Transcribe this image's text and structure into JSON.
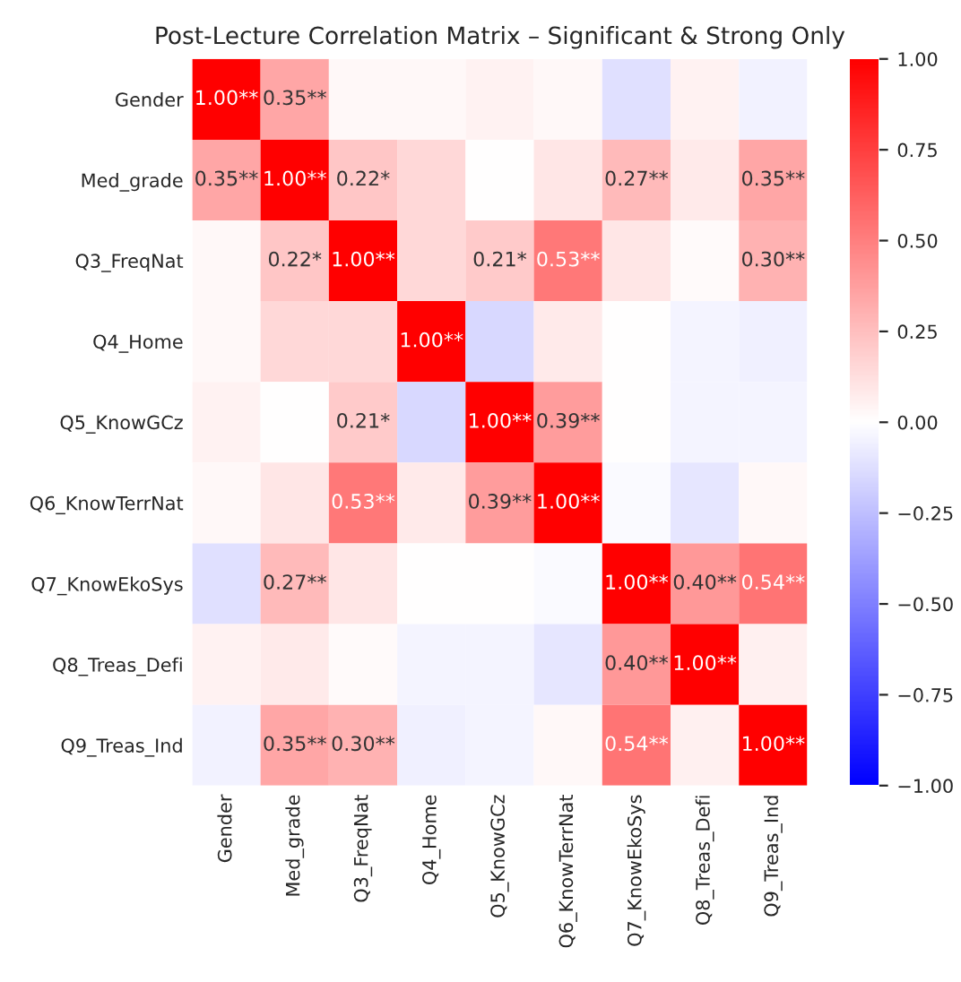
{
  "chart_data": {
    "type": "heatmap",
    "title": "Post-Lecture Correlation Matrix – Significant & Strong Only",
    "categories": [
      "Gender",
      "Med_grade",
      "Q3_FreqNat",
      "Q4_Home",
      "Q5_KnowGCz",
      "Q6_KnowTerrNat",
      "Q7_KnowEkoSys",
      "Q8_Treas_Defi",
      "Q9_Treas_Ind"
    ],
    "y_categories": [
      "Gender",
      "Med_grade",
      "Q3_FreqNat",
      "Q4_Home",
      "Q5_KnowGCz",
      "Q6_KnowTerrNat",
      "Q7_KnowEkoSys",
      "Q8_Treas_Defi",
      "Q9_Treas_Ind"
    ],
    "cells": [
      [
        1.0,
        0.35,
        0.03,
        0.03,
        0.05,
        0.03,
        -0.12,
        0.05,
        -0.05
      ],
      [
        0.35,
        1.0,
        0.22,
        0.15,
        0.0,
        0.1,
        0.27,
        0.08,
        0.35
      ],
      [
        0.03,
        0.22,
        1.0,
        0.15,
        0.21,
        0.53,
        0.1,
        0.02,
        0.3
      ],
      [
        0.03,
        0.15,
        0.15,
        1.0,
        -0.15,
        0.08,
        0.0,
        -0.04,
        -0.06
      ],
      [
        0.05,
        0.0,
        0.21,
        -0.15,
        1.0,
        0.39,
        0.0,
        -0.04,
        -0.04
      ],
      [
        0.03,
        0.1,
        0.53,
        0.08,
        0.39,
        1.0,
        -0.02,
        -0.1,
        0.03
      ],
      [
        -0.12,
        0.27,
        0.1,
        0.0,
        0.0,
        -0.02,
        1.0,
        0.4,
        0.54
      ],
      [
        0.05,
        0.08,
        0.02,
        -0.04,
        -0.04,
        -0.1,
        0.4,
        1.0,
        0.06
      ],
      [
        -0.05,
        0.35,
        0.3,
        -0.06,
        -0.04,
        0.03,
        0.54,
        0.06,
        1.0
      ]
    ],
    "cell_labels": [
      [
        "1.00**",
        "0.35**",
        null,
        null,
        null,
        null,
        null,
        null,
        null
      ],
      [
        "0.35**",
        "1.00**",
        "0.22*",
        null,
        null,
        null,
        "0.27**",
        null,
        "0.35**"
      ],
      [
        null,
        "0.22*",
        "1.00**",
        null,
        "0.21*",
        "0.53**",
        null,
        null,
        "0.30**"
      ],
      [
        null,
        null,
        null,
        "1.00**",
        null,
        null,
        null,
        null,
        null
      ],
      [
        null,
        null,
        "0.21*",
        null,
        "1.00**",
        "0.39**",
        null,
        null,
        null
      ],
      [
        null,
        null,
        "0.53**",
        null,
        "0.39**",
        "1.00**",
        null,
        null,
        null
      ],
      [
        null,
        "0.27**",
        null,
        null,
        null,
        null,
        "1.00**",
        "0.40**",
        "0.54**"
      ],
      [
        null,
        null,
        null,
        null,
        null,
        null,
        "0.40**",
        "1.00**",
        null
      ],
      [
        null,
        "0.35**",
        "0.30**",
        null,
        null,
        null,
        "0.54**",
        null,
        "1.00**"
      ]
    ],
    "clim": [
      -1,
      1
    ],
    "cticks": [
      {
        "value": -1,
        "label": "−1.00"
      },
      {
        "value": -0.75,
        "label": "−0.75"
      },
      {
        "value": -0.5,
        "label": "−0.50"
      },
      {
        "value": -0.25,
        "label": "−0.25"
      },
      {
        "value": 0,
        "label": "0.00"
      },
      {
        "value": 0.25,
        "label": "0.25"
      },
      {
        "value": 0.5,
        "label": "0.50"
      },
      {
        "value": 0.75,
        "label": "0.75"
      },
      {
        "value": 1,
        "label": "1.00"
      }
    ]
  }
}
